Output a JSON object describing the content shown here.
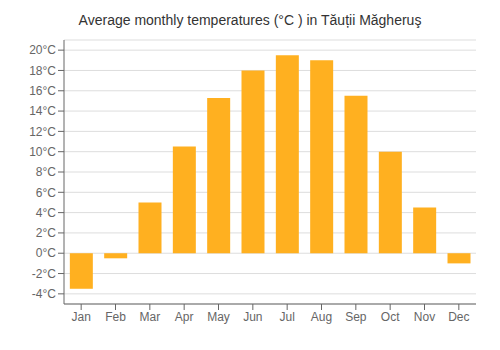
{
  "chart_data": {
    "type": "bar",
    "title": "Average monthly temperatures (°C ) in Tăuții Măgheruş",
    "categories": [
      "Jan",
      "Feb",
      "Mar",
      "Apr",
      "May",
      "Jun",
      "Jul",
      "Aug",
      "Sep",
      "Oct",
      "Nov",
      "Dec"
    ],
    "values": [
      -3.5,
      -0.5,
      5.0,
      10.5,
      15.3,
      18.0,
      19.5,
      19.0,
      15.5,
      10.0,
      4.5,
      -1.0
    ],
    "color": "#FFB020",
    "ylim": [
      -5,
      21
    ],
    "yticks": [
      {
        "value": -4,
        "label": "-4°C"
      },
      {
        "value": -2,
        "label": "-2°C"
      },
      {
        "value": 0,
        "label": "0°C"
      },
      {
        "value": 2,
        "label": "2°C"
      },
      {
        "value": 4,
        "label": "4°C"
      },
      {
        "value": 6,
        "label": "6°C"
      },
      {
        "value": 8,
        "label": "8°C"
      },
      {
        "value": 10,
        "label": "10°C"
      },
      {
        "value": 12,
        "label": "12°C"
      },
      {
        "value": 14,
        "label": "14°C"
      },
      {
        "value": 16,
        "label": "16°C"
      },
      {
        "value": 18,
        "label": "18°C"
      },
      {
        "value": 20,
        "label": "20°C"
      }
    ],
    "grid": true
  }
}
